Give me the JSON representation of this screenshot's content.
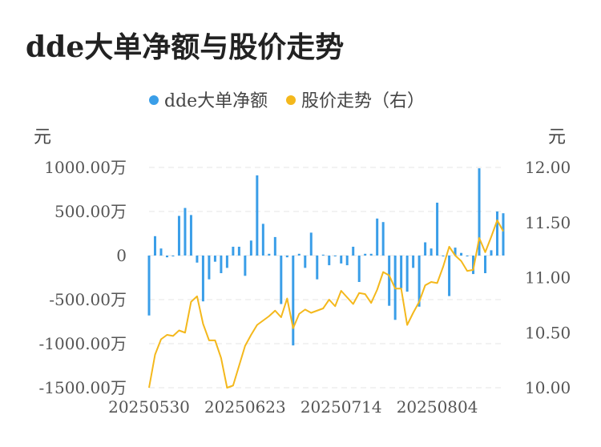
{
  "title": "dde大单净额与股价走势",
  "chart_data": {
    "type": "bar+line",
    "title": "dde大单净额与股价走势",
    "left_axis": {
      "unit": "元",
      "range": [
        -1500,
        1000
      ],
      "ticks": [
        1000,
        500,
        0,
        -500,
        -1000,
        -1500
      ],
      "tick_labels": [
        "1000.00万",
        "500.00万",
        "0",
        "-500.00万",
        "-1000.00万",
        "-1500.00万"
      ]
    },
    "right_axis": {
      "unit": "元",
      "range": [
        10.0,
        12.0
      ],
      "ticks": [
        12.0,
        11.5,
        11.0,
        10.5,
        10.0
      ],
      "tick_labels": [
        "12.00",
        "11.50",
        "11.00",
        "10.50",
        "10.00"
      ]
    },
    "x_tick_labels": [
      {
        "index": 0,
        "label": "20250530"
      },
      {
        "index": 16,
        "label": "20250623"
      },
      {
        "index": 32,
        "label": "20250714"
      },
      {
        "index": 48,
        "label": "20250804"
      }
    ],
    "grid": true,
    "legend_position": "top-center",
    "series": [
      {
        "name": "dde大单净额",
        "type": "bar",
        "axis": "left",
        "color": "#3a9ee8",
        "values": [
          -680,
          220,
          80,
          -20,
          -10,
          450,
          540,
          460,
          -80,
          -520,
          -270,
          -70,
          -200,
          -140,
          100,
          100,
          -230,
          170,
          910,
          360,
          20,
          210,
          -550,
          -20,
          -1020,
          20,
          -140,
          260,
          -270,
          10,
          -110,
          -10,
          -90,
          -110,
          100,
          -300,
          20,
          20,
          420,
          380,
          -570,
          -730,
          -370,
          -410,
          -140,
          -580,
          150,
          80,
          600,
          -10,
          -460,
          90,
          30,
          -10,
          -210,
          990,
          -200,
          60,
          500,
          480
        ]
      },
      {
        "name": "股价走势（右）",
        "type": "line",
        "axis": "right",
        "color": "#f4b81c",
        "values": [
          10.0,
          10.3,
          10.44,
          10.48,
          10.47,
          10.52,
          10.5,
          10.78,
          10.83,
          10.58,
          10.43,
          10.43,
          10.27,
          10.0,
          10.02,
          10.2,
          10.38,
          10.48,
          10.57,
          10.61,
          10.65,
          10.7,
          10.64,
          10.81,
          10.54,
          10.67,
          10.71,
          10.68,
          10.7,
          10.72,
          10.8,
          10.74,
          10.88,
          10.82,
          10.76,
          10.86,
          10.85,
          10.77,
          10.89,
          11.05,
          11.02,
          10.9,
          10.9,
          10.57,
          10.68,
          10.78,
          10.93,
          10.96,
          10.95,
          11.1,
          11.28,
          11.2,
          11.15,
          11.06,
          11.07,
          11.36,
          11.23,
          11.37,
          11.52,
          11.42
        ]
      }
    ]
  }
}
